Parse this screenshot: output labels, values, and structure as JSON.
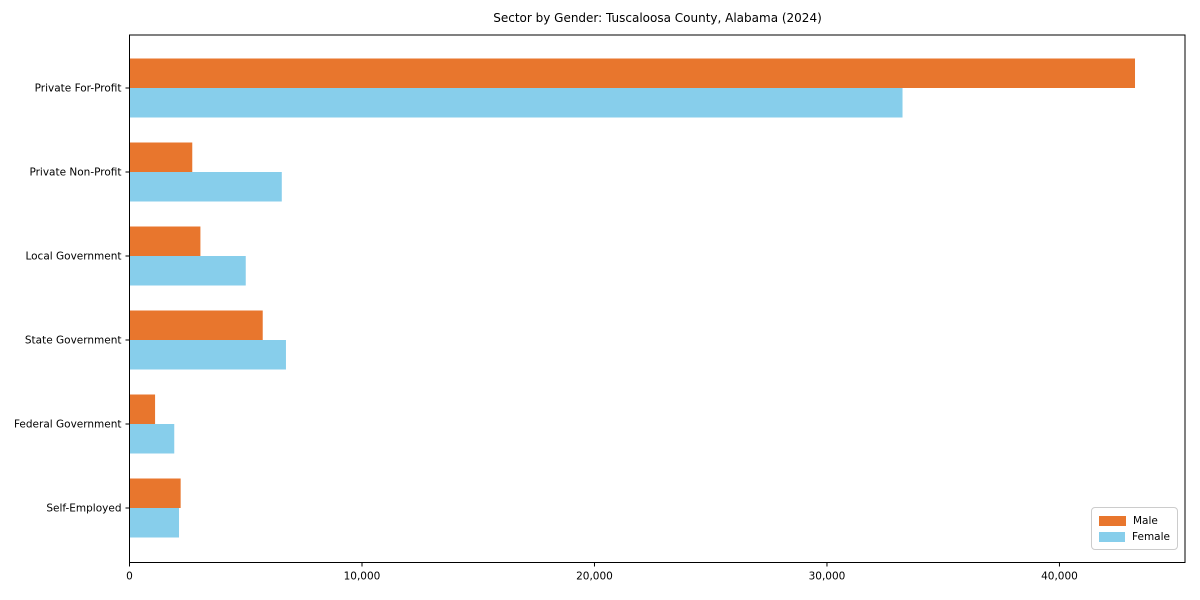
{
  "figure": {
    "background_color": "#ffffff",
    "frame_color": "#000000"
  },
  "chart_data": {
    "type": "bar",
    "orientation": "horizontal",
    "title": "Sector by Gender: Tuscaloosa County, Alabama (2024)",
    "xlabel": "",
    "ylabel": "",
    "categories": [
      "Private For-Profit",
      "Private Non-Profit",
      "Local Government",
      "State Government",
      "Federal Government",
      "Self-Employed"
    ],
    "series": [
      {
        "name": "Male",
        "color": "#e8762d",
        "values": [
          43250,
          2700,
          3050,
          5730,
          1100,
          2200
        ]
      },
      {
        "name": "Female",
        "color": "#87ceeb",
        "values": [
          33250,
          6550,
          5000,
          6730,
          1925,
          2130
        ]
      }
    ],
    "xlim": [
      0,
      45400
    ],
    "xticks": [
      0,
      10000,
      20000,
      30000,
      40000
    ],
    "xtick_labels": [
      "0",
      "10,000",
      "20,000",
      "30,000",
      "40,000"
    ],
    "grid": false,
    "legend_position": "lower right"
  },
  "legend": {
    "items": [
      {
        "label": "Male",
        "color": "#e8762d"
      },
      {
        "label": "Female",
        "color": "#87ceeb"
      }
    ]
  }
}
